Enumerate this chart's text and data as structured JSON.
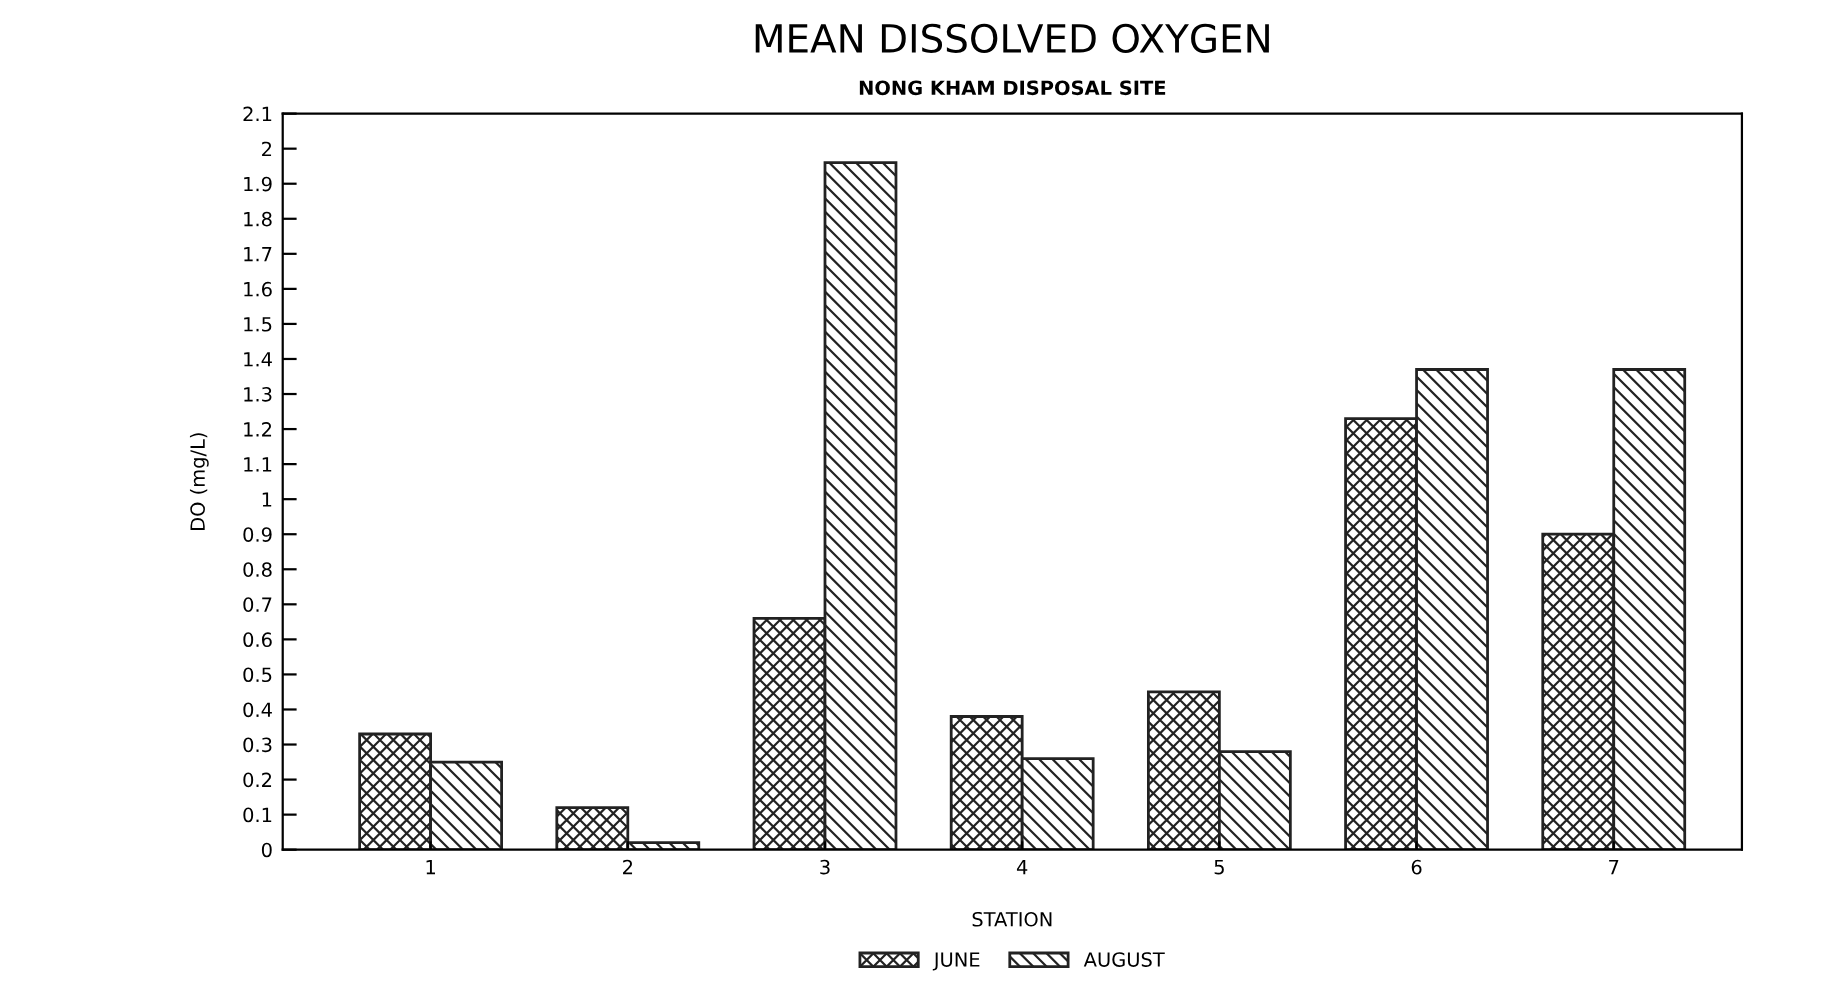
{
  "chart_data": {
    "type": "bar",
    "title": "MEAN DISSOLVED OXYGEN",
    "subtitle": "NONG KHAM DISPOSAL SITE",
    "xlabel": "STATION",
    "ylabel": "DO (mg/L)",
    "categories": [
      "1",
      "2",
      "3",
      "4",
      "5",
      "6",
      "7"
    ],
    "series": [
      {
        "name": "JUNE",
        "color": "#222222",
        "values": [
          0.33,
          0.12,
          0.66,
          0.38,
          0.45,
          1.23,
          0.9
        ]
      },
      {
        "name": "AUGUST",
        "color": "#222222",
        "values": [
          0.25,
          0.02,
          1.96,
          0.26,
          0.28,
          1.37,
          1.37
        ]
      }
    ],
    "ylim": [
      0,
      2.1
    ],
    "yticks": [
      0,
      0.1,
      0.2,
      0.3,
      0.4,
      0.5,
      0.6,
      0.7,
      0.8,
      0.9,
      1,
      1.1,
      1.2,
      1.3,
      1.4,
      1.5,
      1.6,
      1.7,
      1.8,
      1.9,
      2,
      2.1
    ],
    "grid": false,
    "legend": "bottom"
  }
}
